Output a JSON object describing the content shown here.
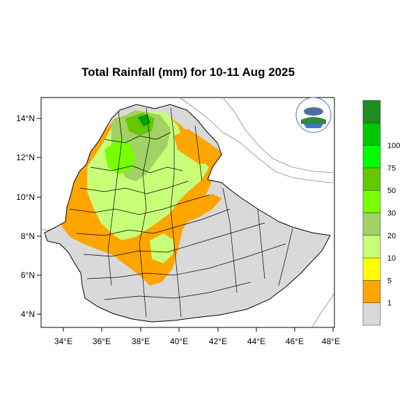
{
  "title": "Total Rainfall (mm) for 10-11 Aug 2025",
  "axes": {
    "x_ticks": [
      "34°E",
      "36°E",
      "38°E",
      "40°E",
      "42°E",
      "44°E",
      "46°E",
      "48°E"
    ],
    "y_ticks": [
      "14°N",
      "12°N",
      "10°N",
      "8°N",
      "6°N",
      "4°N"
    ]
  },
  "colorbar": {
    "labels": [
      "1",
      "5",
      "10",
      "20",
      "30",
      "50",
      "75",
      "100"
    ],
    "colors": [
      "#d9d9d9",
      "#ffa500",
      "#ffff00",
      "#c8ff78",
      "#a0d264",
      "#78ff00",
      "#64c800",
      "#00ff00",
      "#00c800",
      "#1e8c1e"
    ]
  },
  "map_colors": {
    "no_rain": "#d9d9d9",
    "light": "#ffa500",
    "moderate": "#c8ff78",
    "heavy": "#78c850",
    "very_heavy": "#00a000"
  },
  "logo": {
    "icon": "meteorology-agency-logo-icon"
  }
}
